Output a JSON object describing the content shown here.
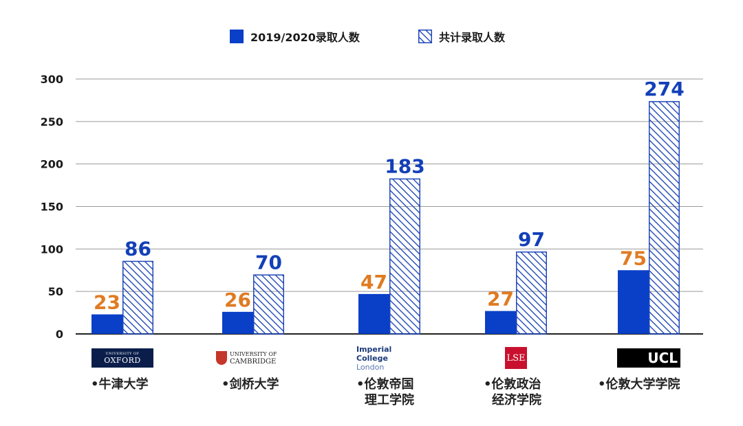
{
  "chart_data": {
    "type": "bar",
    "title": "",
    "xlabel": "",
    "ylabel": "",
    "ylim": [
      0,
      300
    ],
    "yticks": [
      0,
      50,
      100,
      150,
      200,
      250,
      300
    ],
    "categories": [
      "•牛津大学",
      "•剑桥大学",
      "•伦敦帝国理工学院",
      "•伦敦政治经济学院",
      "•伦敦大学学院"
    ],
    "category_lines": [
      [
        "•牛津大学"
      ],
      [
        "•剑桥大学"
      ],
      [
        "•伦敦帝国",
        "理工学院"
      ],
      [
        "•伦敦政治",
        "经济学院"
      ],
      [
        "•伦敦大学学院"
      ]
    ],
    "series": [
      {
        "name": "2019/2020录取人数",
        "values": [
          23,
          26,
          47,
          27,
          75
        ],
        "color": "#0a3fc7",
        "label_color": "#e07b22",
        "pattern": "solid"
      },
      {
        "name": "共计录取人数",
        "values": [
          86,
          70,
          183,
          97,
          274
        ],
        "color": "#1f47b8",
        "label_color": "#1340b8",
        "pattern": "hatched"
      }
    ],
    "logos": [
      {
        "text_lines": [
          "UNIVERSITY OF",
          "OXFORD"
        ],
        "bg": "#0b1e4b",
        "fg": "#ffffff"
      },
      {
        "text_lines": [
          "UNIVERSITY OF",
          "CAMBRIDGE"
        ],
        "bg": "#ffffff",
        "fg": "#222222",
        "shield_color": "#c4372a"
      },
      {
        "text_lines": [
          "Imperial College",
          "London"
        ],
        "bg": "#ffffff",
        "fg": "#1a3a7a"
      },
      {
        "text_lines": [
          "LSE"
        ],
        "bg": "#c8102e",
        "fg": "#ffffff"
      },
      {
        "text_lines": [
          "UCL"
        ],
        "bg": "#000000",
        "fg": "#ffffff"
      }
    ],
    "legend_position": "top-center",
    "grid": true
  }
}
